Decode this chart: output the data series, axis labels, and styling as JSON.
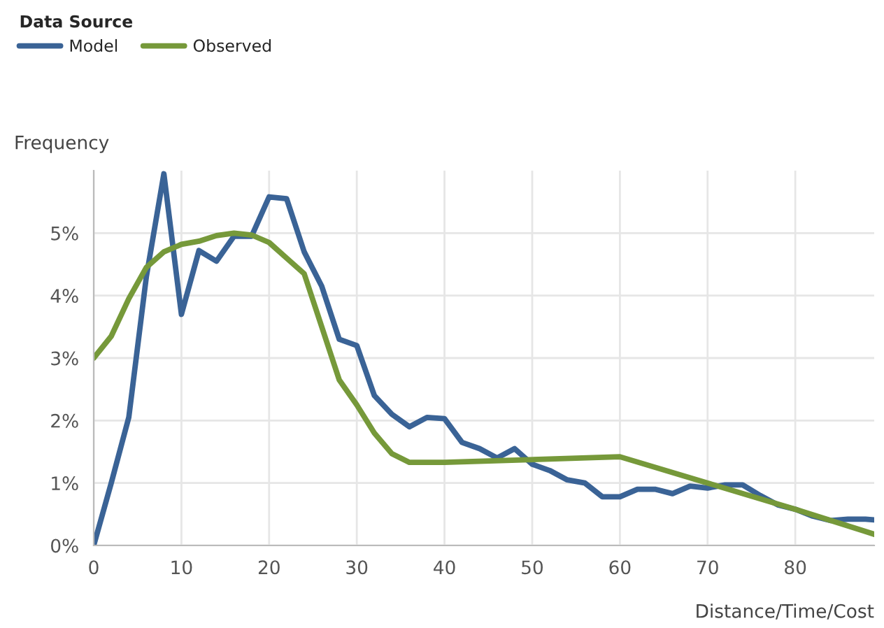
{
  "chart_data": {
    "type": "line",
    "xlabel": "Distance/Time/Cost",
    "ylabel": "Frequency",
    "legend_title": "Data Source",
    "legend": "top left",
    "grid": true,
    "marker": "none",
    "line_style": "solid",
    "xlim": [
      0,
      89
    ],
    "xticks": [
      0,
      10,
      20,
      30,
      40,
      50,
      60,
      70,
      80
    ],
    "ylim": [
      0,
      6
    ],
    "yticks": [
      {
        "value": 0,
        "label": "0%"
      },
      {
        "value": 1,
        "label": "1%"
      },
      {
        "value": 2,
        "label": "2%"
      },
      {
        "value": 3,
        "label": "3%"
      },
      {
        "value": 4,
        "label": "4%"
      },
      {
        "value": 5,
        "label": "5%"
      }
    ],
    "series": [
      {
        "name": "Model",
        "color": "#3a6396",
        "x": [
          0,
          2,
          4,
          6,
          8,
          10,
          12,
          14,
          16,
          18,
          20,
          22,
          24,
          26,
          28,
          30,
          32,
          34,
          36,
          38,
          40,
          42,
          44,
          46,
          48,
          50,
          52,
          54,
          56,
          58,
          60,
          62,
          64,
          66,
          68,
          70,
          72,
          74,
          76,
          78,
          80,
          82,
          84,
          86,
          88,
          89
        ],
        "values": [
          0,
          1.0,
          2.05,
          4.3,
          5.95,
          3.7,
          4.72,
          4.55,
          4.95,
          4.95,
          5.58,
          5.55,
          4.7,
          4.15,
          3.3,
          3.2,
          2.4,
          2.1,
          1.9,
          2.05,
          2.03,
          1.65,
          1.55,
          1.4,
          1.55,
          1.3,
          1.2,
          1.05,
          1.0,
          0.78,
          0.78,
          0.9,
          0.9,
          0.83,
          0.95,
          0.92,
          0.97,
          0.97,
          0.8,
          0.65,
          0.58,
          0.47,
          0.4,
          0.42,
          0.42,
          0.41
        ]
      },
      {
        "name": "Observed",
        "color": "#76993a",
        "x": [
          0,
          2,
          4,
          6,
          8,
          10,
          12,
          14,
          16,
          18,
          20,
          22,
          24,
          26,
          28,
          30,
          32,
          34,
          36,
          40,
          60,
          70,
          80,
          89
        ],
        "values": [
          3.0,
          3.35,
          3.95,
          4.45,
          4.7,
          4.82,
          4.87,
          4.96,
          5.0,
          4.97,
          4.85,
          4.6,
          4.35,
          3.5,
          2.65,
          2.25,
          1.8,
          1.47,
          1.33,
          1.33,
          1.42,
          1.0,
          0.58,
          0.18
        ]
      }
    ]
  }
}
